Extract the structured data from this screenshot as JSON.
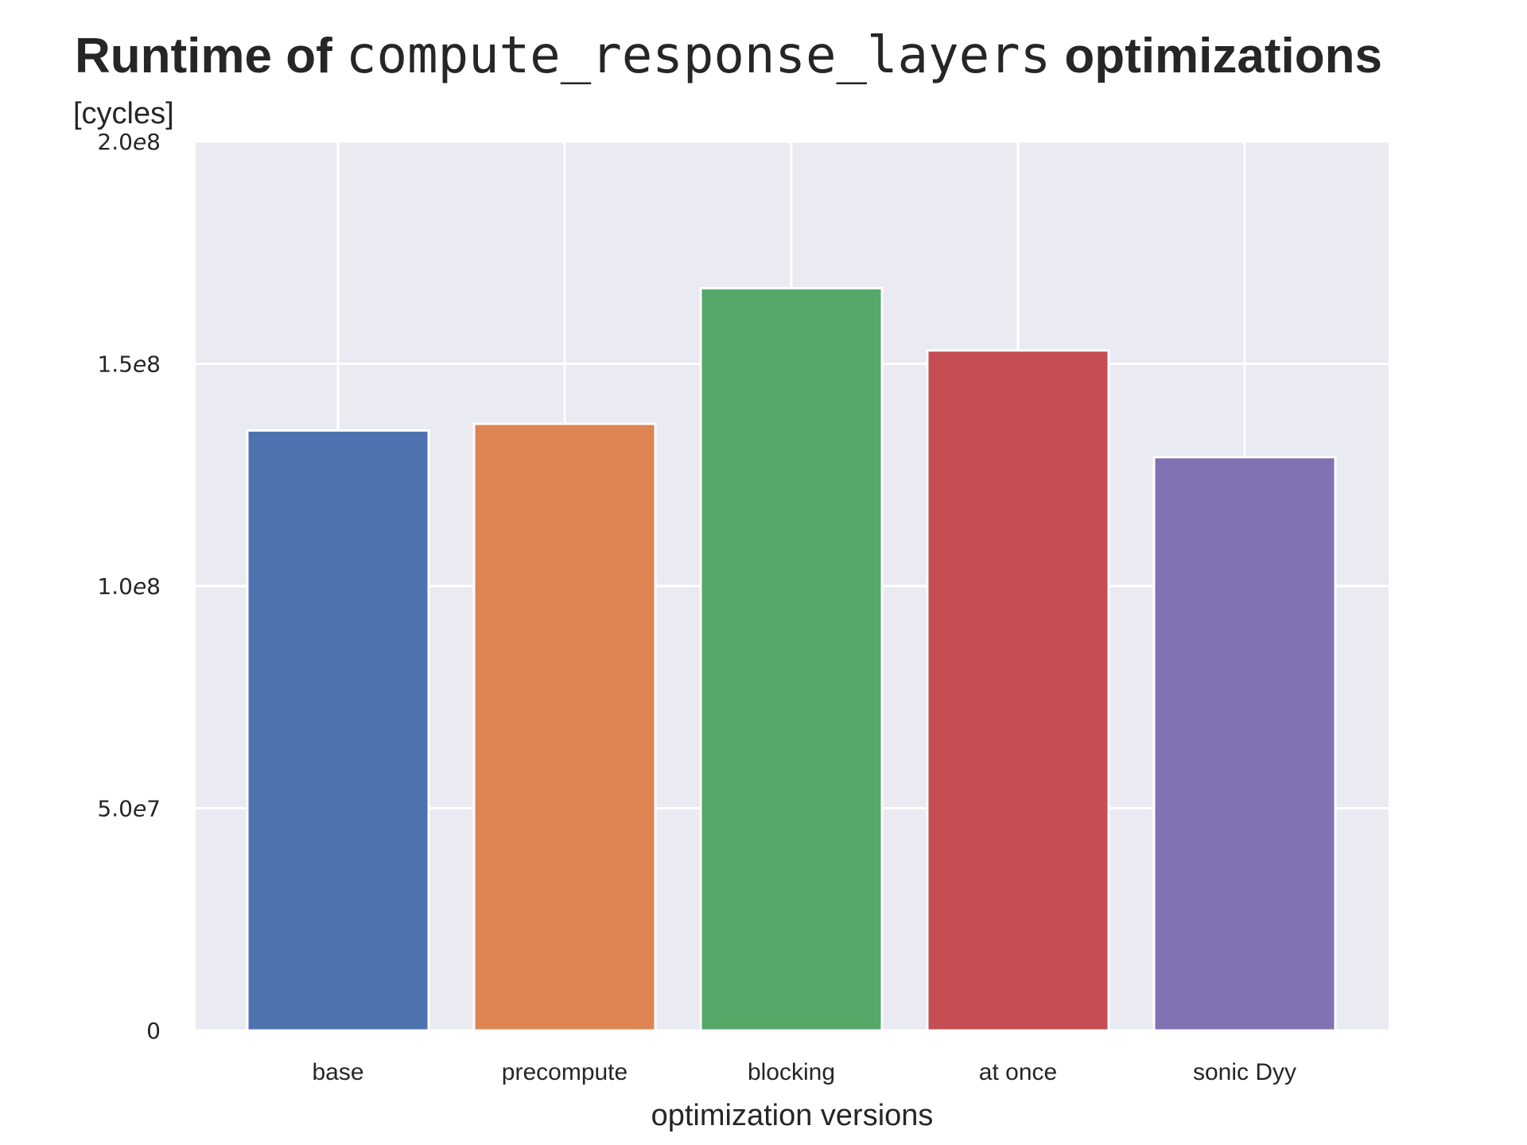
{
  "title": {
    "prefix": "Runtime of ",
    "code": "compute_response_layers",
    "suffix": " optimizations"
  },
  "chart_data": {
    "type": "bar",
    "categories": [
      "base",
      "precompute",
      "blocking",
      "at once",
      "sonic Dyy"
    ],
    "values": [
      135000000,
      136500000,
      167000000,
      153000000,
      129000000
    ],
    "colors": [
      "#4c72b0",
      "#dd8452",
      "#55a868",
      "#c44e52",
      "#8172b3"
    ],
    "xlabel": "optimization versions",
    "ylabel": "[cycles]",
    "ylim": [
      0,
      200000000
    ],
    "yticks": [
      0,
      50000000,
      100000000,
      150000000,
      200000000
    ],
    "ytick_labels": [
      {
        "mant": "0",
        "exp": ""
      },
      {
        "mant": "5.0",
        "exp": "7"
      },
      {
        "mant": "1.0",
        "exp": "8"
      },
      {
        "mant": "1.5",
        "exp": "8"
      },
      {
        "mant": "2.0",
        "exp": "8"
      }
    ],
    "grid": true,
    "background": "#eaeaf2"
  }
}
